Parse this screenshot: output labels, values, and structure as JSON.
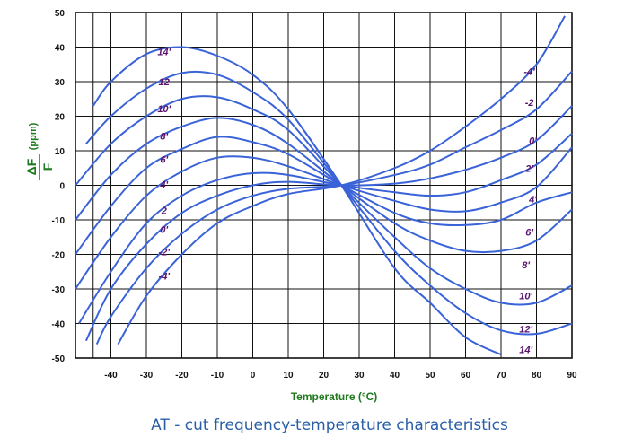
{
  "chart_data": {
    "type": "line",
    "title": "AT - cut frequency-temperature characteristics",
    "xlabel": "Temperature (°C)",
    "ylabel": "ΔF/F (ppm)",
    "ylabel_parts": {
      "numerator": "ΔF",
      "denominator": "F",
      "unit": "(ppm)"
    },
    "xlim": [
      -50,
      90
    ],
    "ylim": [
      -50,
      50
    ],
    "xticks": [
      -40,
      -30,
      -20,
      -10,
      0,
      10,
      20,
      30,
      40,
      50,
      60,
      70,
      80,
      90
    ],
    "yticks": [
      50,
      40,
      30,
      20,
      10,
      0,
      -10,
      -20,
      -30,
      -40,
      -50
    ],
    "grid": true,
    "colors": {
      "curve": "#3a63d8",
      "grid": "#111111",
      "label": "#5a1470",
      "axis_title": "#1f7a1f",
      "caption": "#2a5fa8"
    },
    "series": [
      {
        "label": "14'",
        "label_right": "14'",
        "x": [
          -45,
          -40,
          -30,
          -20,
          -10,
          0,
          10,
          25,
          40,
          50,
          60,
          70
        ],
        "y": [
          23,
          30,
          38,
          40,
          37.5,
          32,
          22,
          0,
          -24,
          -34,
          -44,
          -49
        ]
      },
      {
        "label": "12",
        "label_right": "12'",
        "x": [
          -47,
          -40,
          -30,
          -20,
          -10,
          0,
          10,
          25,
          40,
          50,
          60,
          70,
          80,
          90
        ],
        "y": [
          12,
          20,
          28,
          32.5,
          32,
          27,
          19,
          0,
          -19,
          -29,
          -37,
          -42,
          -43,
          -40
        ]
      },
      {
        "label": "10'",
        "label_right": "10'",
        "x": [
          -50,
          -40,
          -30,
          -20,
          -10,
          0,
          10,
          25,
          40,
          50,
          60,
          70,
          80,
          90
        ],
        "y": [
          0,
          12,
          20,
          25,
          25.5,
          22,
          16,
          0,
          -15,
          -24,
          -30,
          -34,
          -34,
          -29
        ]
      },
      {
        "label": "8'",
        "label_right": "8'",
        "x": [
          -50,
          -40,
          -30,
          -20,
          -10,
          0,
          10,
          25,
          40,
          50,
          60,
          70,
          80,
          90
        ],
        "y": [
          -10,
          3,
          12,
          17,
          19.5,
          17.5,
          12,
          0,
          -11,
          -16,
          -19,
          -19,
          -16,
          -7
        ]
      },
      {
        "label": "6'",
        "label_right": "6'",
        "x": [
          -50,
          -40,
          -30,
          -20,
          -10,
          0,
          10,
          25,
          40,
          50,
          60,
          70,
          80,
          90
        ],
        "y": [
          -20,
          -6,
          5,
          10.5,
          14,
          12.5,
          9,
          0,
          -8,
          -11,
          -11.5,
          -10,
          -5,
          -2
        ]
      },
      {
        "label": "4'",
        "label_right": "4'",
        "x": [
          -50,
          -40,
          -30,
          -20,
          -10,
          0,
          10,
          25,
          40,
          50,
          60,
          70,
          80,
          90
        ],
        "y": [
          -30,
          -15,
          -3,
          4,
          8,
          8,
          5.5,
          0,
          -4.5,
          -7,
          -7.5,
          -5,
          -0.5,
          11
        ]
      },
      {
        "label": "2",
        "label_right": "2'",
        "x": [
          -49,
          -40,
          -30,
          -20,
          -10,
          0,
          10,
          25,
          40,
          50,
          60,
          70,
          80,
          90
        ],
        "y": [
          -40,
          -25,
          -11,
          -3,
          1.5,
          3.5,
          3,
          0,
          -2,
          -3,
          -2,
          1.5,
          6,
          15
        ]
      },
      {
        "label": "0'",
        "label_right": "0'",
        "x": [
          -47,
          -40,
          -30,
          -20,
          -10,
          0,
          10,
          25,
          40,
          50,
          60,
          70,
          80,
          90
        ],
        "y": [
          -45,
          -30,
          -17,
          -8,
          -3,
          0,
          1,
          0,
          0.5,
          2,
          4.5,
          8,
          13,
          23
        ]
      },
      {
        "label": "-2'",
        "label_right": "-2",
        "x": [
          -44,
          -40,
          -30,
          -20,
          -10,
          0,
          10,
          25,
          40,
          50,
          60,
          70,
          80,
          90
        ],
        "y": [
          -46,
          -38,
          -24,
          -14,
          -7,
          -3,
          -1,
          0,
          3,
          6,
          11,
          16,
          22,
          33
        ]
      },
      {
        "label": "-4'",
        "label_right": "-4'",
        "x": [
          -38,
          -30,
          -20,
          -10,
          0,
          10,
          25,
          40,
          50,
          60,
          70,
          80,
          88
        ],
        "y": [
          -46,
          -32,
          -20,
          -11,
          -6,
          -2.5,
          0,
          5,
          10,
          17,
          25,
          35,
          49
        ]
      }
    ]
  },
  "caption": "AT - cut frequency-temperature characteristics"
}
